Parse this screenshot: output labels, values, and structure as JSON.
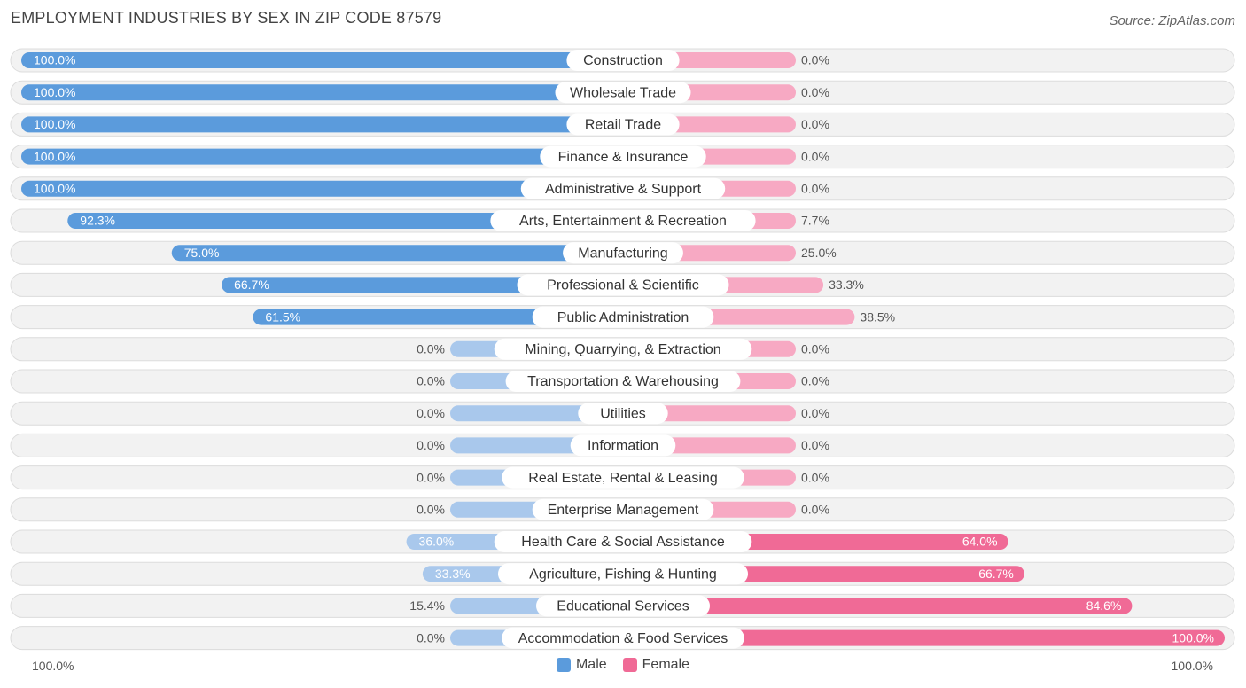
{
  "title": "EMPLOYMENT INDUSTRIES BY SEX IN ZIP CODE 87579",
  "source": "Source: ZipAtlas.com",
  "colors": {
    "male_strong": "#5b9bdc",
    "male_light": "#a9c8ec",
    "female_strong": "#f06a96",
    "female_light": "#f7a9c3",
    "row_bg": "#f2f2f2",
    "row_border": "#dcdcdc"
  },
  "legend": {
    "male": "Male",
    "female": "Female"
  },
  "axis": {
    "left_label": "100.0%",
    "right_label": "100.0%"
  },
  "chart_data": {
    "type": "bar",
    "orientation": "horizontal-diverging",
    "title": "EMPLOYMENT INDUSTRIES BY SEX IN ZIP CODE 87579",
    "xlim": [
      -100,
      100
    ],
    "categories": [
      "Construction",
      "Wholesale Trade",
      "Retail Trade",
      "Finance & Insurance",
      "Administrative & Support",
      "Arts, Entertainment & Recreation",
      "Manufacturing",
      "Professional & Scientific",
      "Public Administration",
      "Mining, Quarrying, & Extraction",
      "Transportation & Warehousing",
      "Utilities",
      "Information",
      "Real Estate, Rental & Leasing",
      "Enterprise Management",
      "Health Care & Social Assistance",
      "Agriculture, Fishing & Hunting",
      "Educational Services",
      "Accommodation & Food Services"
    ],
    "series": [
      {
        "name": "Male",
        "values": [
          100.0,
          100.0,
          100.0,
          100.0,
          100.0,
          92.3,
          75.0,
          66.7,
          61.5,
          0.0,
          0.0,
          0.0,
          0.0,
          0.0,
          0.0,
          36.0,
          33.3,
          15.4,
          0.0
        ],
        "labels": [
          "100.0%",
          "100.0%",
          "100.0%",
          "100.0%",
          "100.0%",
          "92.3%",
          "75.0%",
          "66.7%",
          "61.5%",
          "0.0%",
          "0.0%",
          "0.0%",
          "0.0%",
          "0.0%",
          "0.0%",
          "36.0%",
          "33.3%",
          "15.4%",
          "0.0%"
        ]
      },
      {
        "name": "Female",
        "values": [
          0.0,
          0.0,
          0.0,
          0.0,
          0.0,
          7.7,
          25.0,
          33.3,
          38.5,
          0.0,
          0.0,
          0.0,
          0.0,
          0.0,
          0.0,
          64.0,
          66.7,
          84.6,
          100.0
        ],
        "labels": [
          "0.0%",
          "0.0%",
          "0.0%",
          "0.0%",
          "0.0%",
          "7.7%",
          "25.0%",
          "33.3%",
          "38.5%",
          "0.0%",
          "0.0%",
          "0.0%",
          "0.0%",
          "0.0%",
          "0.0%",
          "64.0%",
          "66.7%",
          "84.6%",
          "100.0%"
        ]
      }
    ]
  }
}
